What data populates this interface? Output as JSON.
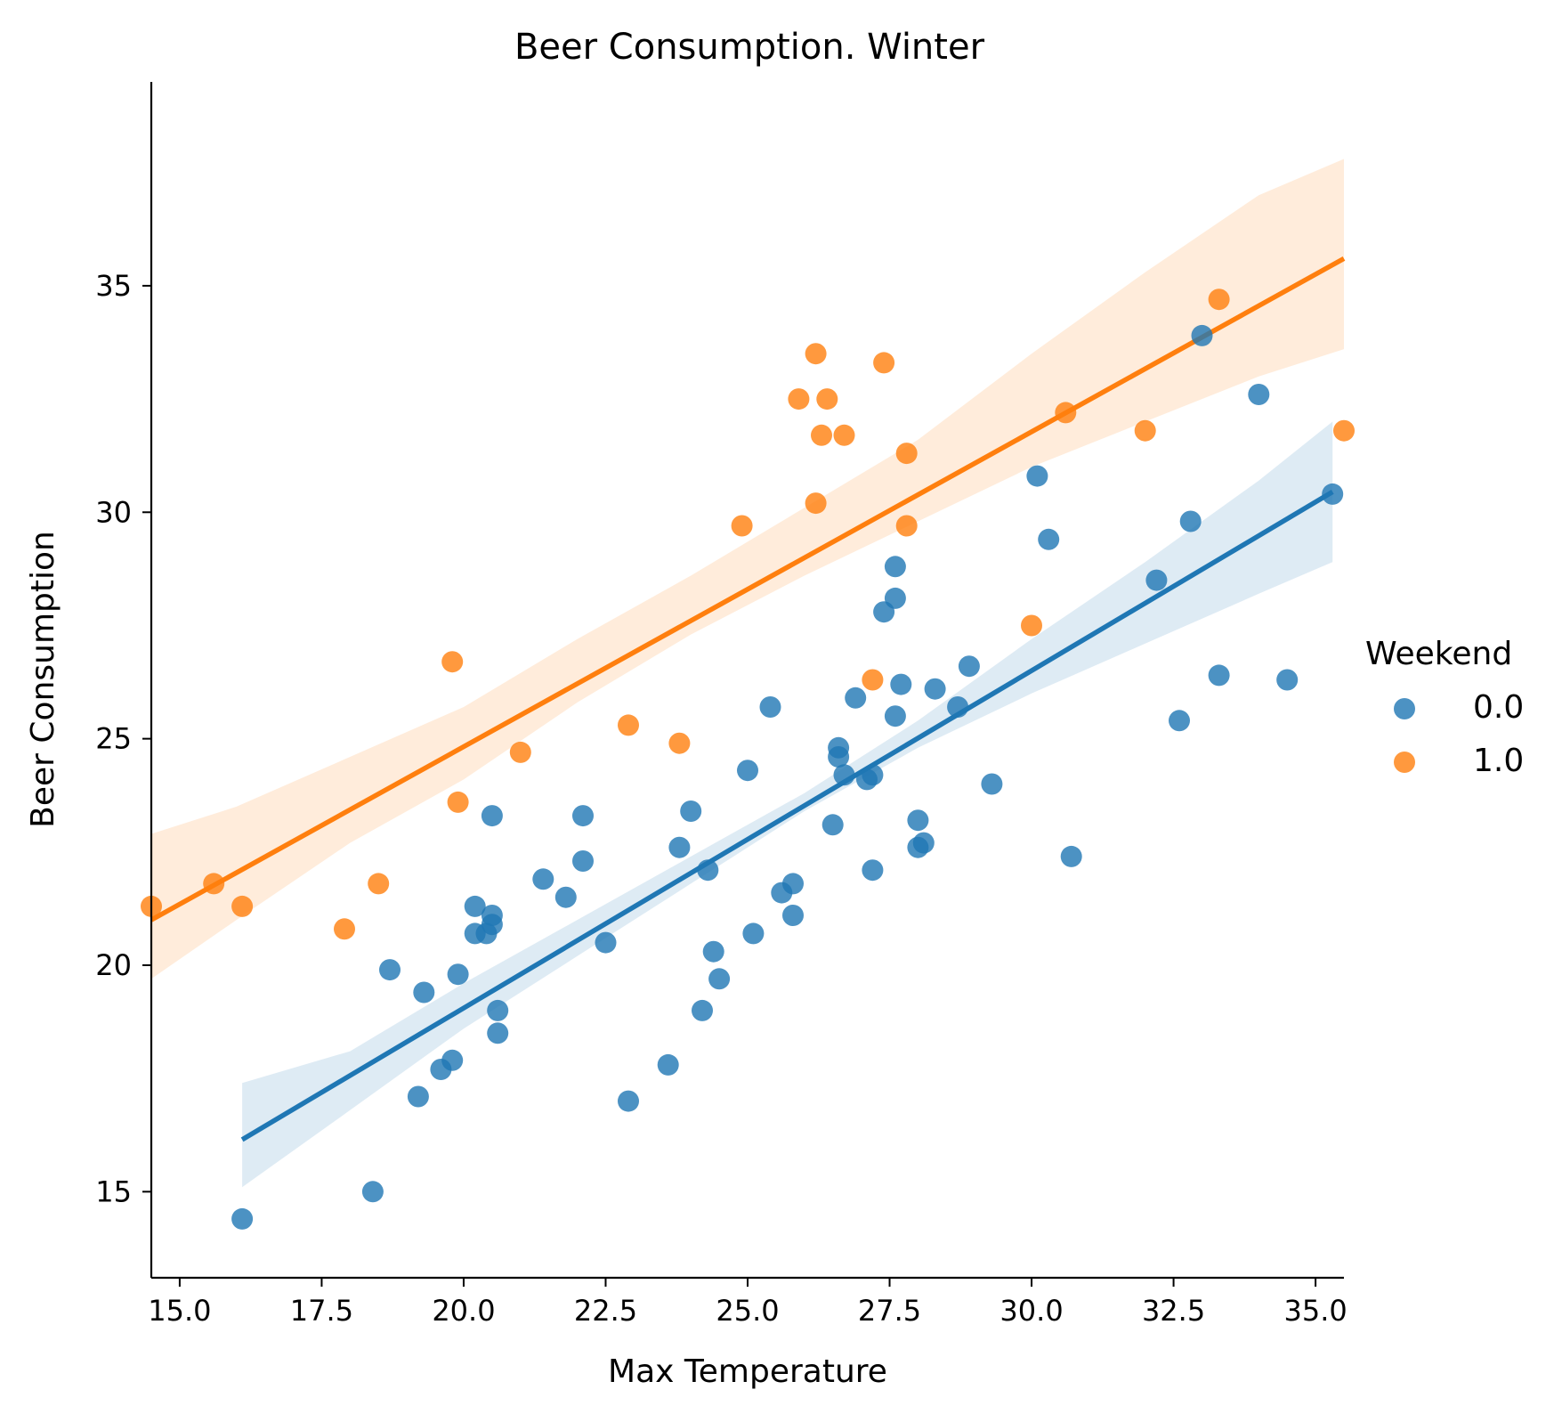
{
  "chart_data": {
    "type": "scatter",
    "title": "Beer Consumption. Winter",
    "xlabel": "Max Temperature",
    "ylabel": "Beer Consumption",
    "xlim": [
      14.5,
      35.5
    ],
    "ylim": [
      13.1,
      39.5
    ],
    "xticks": [
      15.0,
      17.5,
      20.0,
      22.5,
      25.0,
      27.5,
      30.0,
      32.5,
      35.0
    ],
    "xtick_labels": [
      "15.0",
      "17.5",
      "20.0",
      "22.5",
      "25.0",
      "27.5",
      "30.0",
      "32.5",
      "35.0"
    ],
    "yticks": [
      15,
      20,
      25,
      30,
      35
    ],
    "ytick_labels": [
      "15",
      "20",
      "25",
      "30",
      "35"
    ],
    "grid": false,
    "legend": {
      "title": "Weekend",
      "placement": "right",
      "entries": [
        "0.0",
        "1.0"
      ]
    },
    "series": [
      {
        "name": "0.0",
        "color": "#1f77b4",
        "points": [
          [
            16.1,
            14.4
          ],
          [
            18.4,
            15.0
          ],
          [
            19.2,
            17.1
          ],
          [
            19.6,
            17.7
          ],
          [
            19.8,
            17.9
          ],
          [
            18.7,
            19.9
          ],
          [
            19.3,
            19.4
          ],
          [
            19.9,
            19.8
          ],
          [
            20.6,
            19.0
          ],
          [
            20.6,
            18.5
          ],
          [
            20.2,
            20.7
          ],
          [
            20.4,
            20.7
          ],
          [
            20.5,
            20.9
          ],
          [
            20.2,
            21.3
          ],
          [
            20.5,
            21.1
          ],
          [
            20.5,
            23.3
          ],
          [
            21.4,
            21.9
          ],
          [
            21.8,
            21.5
          ],
          [
            22.1,
            22.3
          ],
          [
            22.1,
            23.3
          ],
          [
            22.5,
            20.5
          ],
          [
            22.9,
            17.0
          ],
          [
            23.6,
            17.8
          ],
          [
            23.8,
            22.6
          ],
          [
            24.0,
            23.4
          ],
          [
            24.2,
            19.0
          ],
          [
            24.3,
            22.1
          ],
          [
            24.4,
            20.3
          ],
          [
            24.5,
            19.7
          ],
          [
            25.0,
            24.3
          ],
          [
            25.1,
            20.7
          ],
          [
            25.4,
            25.7
          ],
          [
            25.6,
            21.6
          ],
          [
            25.8,
            21.8
          ],
          [
            25.8,
            21.1
          ],
          [
            26.5,
            23.1
          ],
          [
            26.6,
            24.8
          ],
          [
            26.6,
            24.6
          ],
          [
            26.7,
            24.2
          ],
          [
            26.9,
            25.9
          ],
          [
            27.1,
            24.1
          ],
          [
            27.2,
            24.2
          ],
          [
            27.2,
            22.1
          ],
          [
            27.4,
            27.8
          ],
          [
            27.6,
            28.8
          ],
          [
            27.6,
            28.1
          ],
          [
            27.6,
            25.5
          ],
          [
            27.7,
            26.2
          ],
          [
            28.0,
            23.2
          ],
          [
            28.0,
            22.6
          ],
          [
            28.1,
            22.7
          ],
          [
            28.3,
            26.1
          ],
          [
            28.7,
            25.7
          ],
          [
            28.9,
            26.6
          ],
          [
            29.3,
            24.0
          ],
          [
            30.1,
            30.8
          ],
          [
            30.3,
            29.4
          ],
          [
            30.7,
            22.4
          ],
          [
            32.2,
            28.5
          ],
          [
            32.6,
            25.4
          ],
          [
            32.8,
            29.8
          ],
          [
            33.0,
            33.9
          ],
          [
            33.3,
            26.4
          ],
          [
            34.0,
            32.6
          ],
          [
            34.5,
            26.3
          ],
          [
            35.3,
            30.4
          ]
        ],
        "fit": {
          "x0": 16.1,
          "y0": 16.15,
          "x1": 35.3,
          "y1": 30.45
        },
        "band": {
          "x": [
            16.1,
            18.0,
            20.0,
            22.0,
            24.0,
            25.0,
            26.0,
            27.0,
            28.0,
            30.0,
            32.0,
            34.0,
            35.3
          ],
          "lower": [
            15.1,
            16.8,
            18.6,
            20.2,
            21.8,
            22.6,
            23.4,
            24.1,
            24.8,
            26.0,
            27.1,
            28.2,
            28.9
          ],
          "upper": [
            17.4,
            18.1,
            19.6,
            21.0,
            22.4,
            23.1,
            23.8,
            24.6,
            25.4,
            27.2,
            28.9,
            30.7,
            32.0
          ]
        }
      },
      {
        "name": "1.0",
        "color": "#ff7f0e",
        "points": [
          [
            14.5,
            21.3
          ],
          [
            15.6,
            21.8
          ],
          [
            16.1,
            21.3
          ],
          [
            17.9,
            20.8
          ],
          [
            18.5,
            21.8
          ],
          [
            19.8,
            26.7
          ],
          [
            19.9,
            23.6
          ],
          [
            21.0,
            24.7
          ],
          [
            22.9,
            25.3
          ],
          [
            23.8,
            24.9
          ],
          [
            24.9,
            29.7
          ],
          [
            25.9,
            32.5
          ],
          [
            26.2,
            33.5
          ],
          [
            26.2,
            30.2
          ],
          [
            26.3,
            31.7
          ],
          [
            26.4,
            32.5
          ],
          [
            26.7,
            31.7
          ],
          [
            27.2,
            26.3
          ],
          [
            27.4,
            33.3
          ],
          [
            27.8,
            31.3
          ],
          [
            27.8,
            29.7
          ],
          [
            30.0,
            27.5
          ],
          [
            30.6,
            32.2
          ],
          [
            32.0,
            31.8
          ],
          [
            33.3,
            34.7
          ],
          [
            35.5,
            31.8
          ]
        ],
        "fit": {
          "x0": 14.5,
          "y0": 21.0,
          "x1": 35.5,
          "y1": 35.6
        },
        "band": {
          "x": [
            14.5,
            16.0,
            18.0,
            20.0,
            22.0,
            24.0,
            26.0,
            28.0,
            30.0,
            32.0,
            34.0,
            35.5
          ],
          "lower": [
            19.7,
            21.0,
            22.7,
            24.1,
            25.8,
            27.3,
            28.6,
            29.8,
            31.0,
            32.0,
            33.0,
            33.6
          ],
          "upper": [
            22.9,
            23.5,
            24.6,
            25.7,
            27.2,
            28.6,
            30.1,
            31.6,
            33.5,
            35.3,
            37.0,
            37.8
          ]
        }
      }
    ]
  }
}
